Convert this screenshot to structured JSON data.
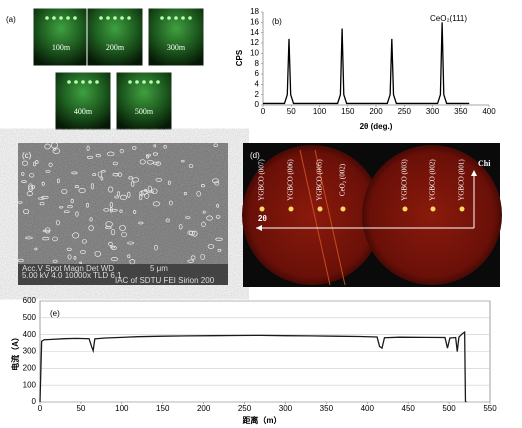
{
  "chart_data": [
    {
      "type": "line",
      "label": "(b)",
      "annotation": "CeO₂(111)",
      "x_label": "2θ (deg.)",
      "y_label": "CPS",
      "color": "#000000",
      "x": [
        0,
        38,
        43,
        46,
        49,
        54,
        132,
        137,
        140,
        143,
        148,
        220,
        225,
        228,
        231,
        236,
        309,
        314,
        317,
        320,
        325,
        365
      ],
      "values": [
        0.3,
        0.3,
        2,
        12.8,
        2,
        0.3,
        0.3,
        2,
        14.8,
        2,
        0.3,
        0.3,
        2,
        12.8,
        2,
        0.3,
        0.3,
        2,
        16,
        2,
        0.3,
        0.3
      ],
      "xlim": [
        0,
        400
      ],
      "xticks": [
        0,
        50,
        100,
        150,
        200,
        250,
        300,
        350,
        400
      ],
      "ylim": [
        0,
        18
      ],
      "yticks": [
        0,
        2,
        4,
        6,
        8,
        10,
        12,
        14,
        16,
        18
      ],
      "grid": false
    },
    {
      "type": "line",
      "label": "(e)",
      "x_label": "距离（m）",
      "y_label": "电流（A）",
      "color": "#1a1a1a",
      "x": [
        0,
        2,
        5,
        15,
        30,
        45,
        60,
        63,
        65,
        67,
        80,
        100,
        120,
        150,
        180,
        210,
        240,
        270,
        300,
        330,
        360,
        390,
        412,
        415,
        418,
        421,
        440,
        470,
        495,
        498,
        501,
        508,
        510,
        512,
        516,
        519,
        520,
        521
      ],
      "values": [
        0,
        360,
        370,
        372,
        376,
        378,
        376,
        330,
        305,
        375,
        380,
        384,
        388,
        391,
        393,
        394,
        395,
        396,
        394,
        393,
        391,
        389,
        386,
        330,
        320,
        382,
        385,
        384,
        383,
        320,
        380,
        383,
        300,
        385,
        405,
        415,
        5,
        0
      ],
      "xlim": [
        0,
        550
      ],
      "xticks": [
        0,
        50,
        100,
        150,
        200,
        250,
        300,
        350,
        400,
        450,
        500,
        550
      ],
      "ylim": [
        0,
        600
      ],
      "yticks": [
        0,
        100,
        200,
        300,
        400,
        500,
        600
      ],
      "grid": true
    }
  ],
  "panels": {
    "a": {
      "label": "(a)",
      "tiles": [
        "100m",
        "200m",
        "300m",
        "400m",
        "500m"
      ]
    },
    "c": {
      "label": "(c)",
      "info": [
        "Acc.V  Spot Magn    Det  WD",
        "5.00 kV 4.0  10000x  TLD  6.1",
        "5 μm",
        "IAC of SDTU FEI Sirion 200"
      ]
    },
    "d": {
      "label": "(d)",
      "peaks": [
        "YGBCO (007)",
        "YGBCO (006)",
        "YGBCO (005)",
        "CeO₂ (002)",
        "YGBCO (003)",
        "YGBCO (002)",
        "YGBCO (001)"
      ],
      "axis_x": "2θ",
      "axis_y": "Chi"
    }
  }
}
